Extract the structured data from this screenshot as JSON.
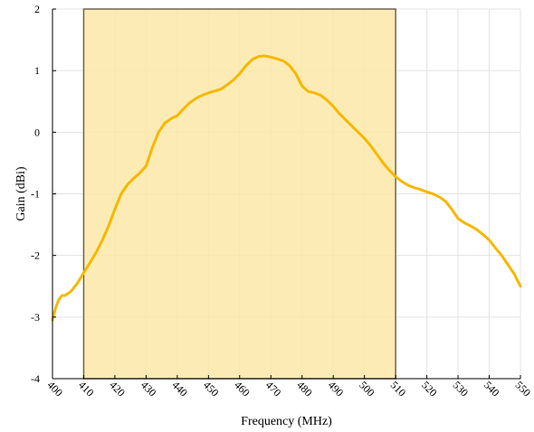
{
  "chart_data": {
    "type": "line",
    "xlabel": "Frequency (MHz)",
    "ylabel": "Gain (dBi)",
    "xlim": [
      400,
      550
    ],
    "ylim": [
      -4,
      2
    ],
    "x_ticks": [
      400,
      410,
      420,
      430,
      440,
      450,
      460,
      470,
      480,
      490,
      500,
      510,
      520,
      530,
      540,
      550
    ],
    "y_ticks": [
      2,
      1,
      0,
      -1,
      -2,
      -3,
      -4
    ],
    "grid": true,
    "highlight_band": {
      "x_start": 410,
      "x_end": 510,
      "fill": "#fde7a8",
      "edge": "#6b6450"
    },
    "line_color": "#f5b800",
    "series": [
      {
        "x": [
          400,
          401,
          402,
          403,
          404,
          406,
          408,
          410,
          412,
          414,
          416,
          418,
          420,
          422,
          424,
          426,
          428,
          430,
          432,
          434,
          436,
          438,
          440,
          442,
          444,
          446,
          448,
          450,
          452,
          454,
          456,
          458,
          460,
          462,
          464,
          466,
          468,
          470,
          472,
          474,
          476,
          478,
          480,
          482,
          484,
          486,
          488,
          490,
          492,
          494,
          496,
          498,
          500,
          502,
          504,
          506,
          508,
          510,
          512,
          514,
          516,
          518,
          520,
          522,
          524,
          526,
          528,
          530,
          532,
          534,
          536,
          538,
          540,
          542,
          544,
          546,
          548,
          550
        ],
        "y": [
          -3.05,
          -2.85,
          -2.72,
          -2.65,
          -2.65,
          -2.58,
          -2.45,
          -2.28,
          -2.12,
          -1.95,
          -1.75,
          -1.52,
          -1.25,
          -1.0,
          -0.85,
          -0.75,
          -0.66,
          -0.55,
          -0.25,
          0.0,
          0.15,
          0.22,
          0.27,
          0.38,
          0.48,
          0.55,
          0.6,
          0.64,
          0.67,
          0.7,
          0.77,
          0.85,
          0.95,
          1.08,
          1.18,
          1.23,
          1.24,
          1.22,
          1.19,
          1.16,
          1.08,
          0.95,
          0.75,
          0.66,
          0.64,
          0.6,
          0.52,
          0.42,
          0.3,
          0.2,
          0.1,
          0.0,
          -0.1,
          -0.22,
          -0.36,
          -0.5,
          -0.62,
          -0.72,
          -0.8,
          -0.86,
          -0.9,
          -0.93,
          -0.97,
          -1.0,
          -1.05,
          -1.12,
          -1.25,
          -1.4,
          -1.47,
          -1.52,
          -1.58,
          -1.66,
          -1.75,
          -1.88,
          -2.0,
          -2.15,
          -2.3,
          -2.5
        ]
      }
    ]
  }
}
